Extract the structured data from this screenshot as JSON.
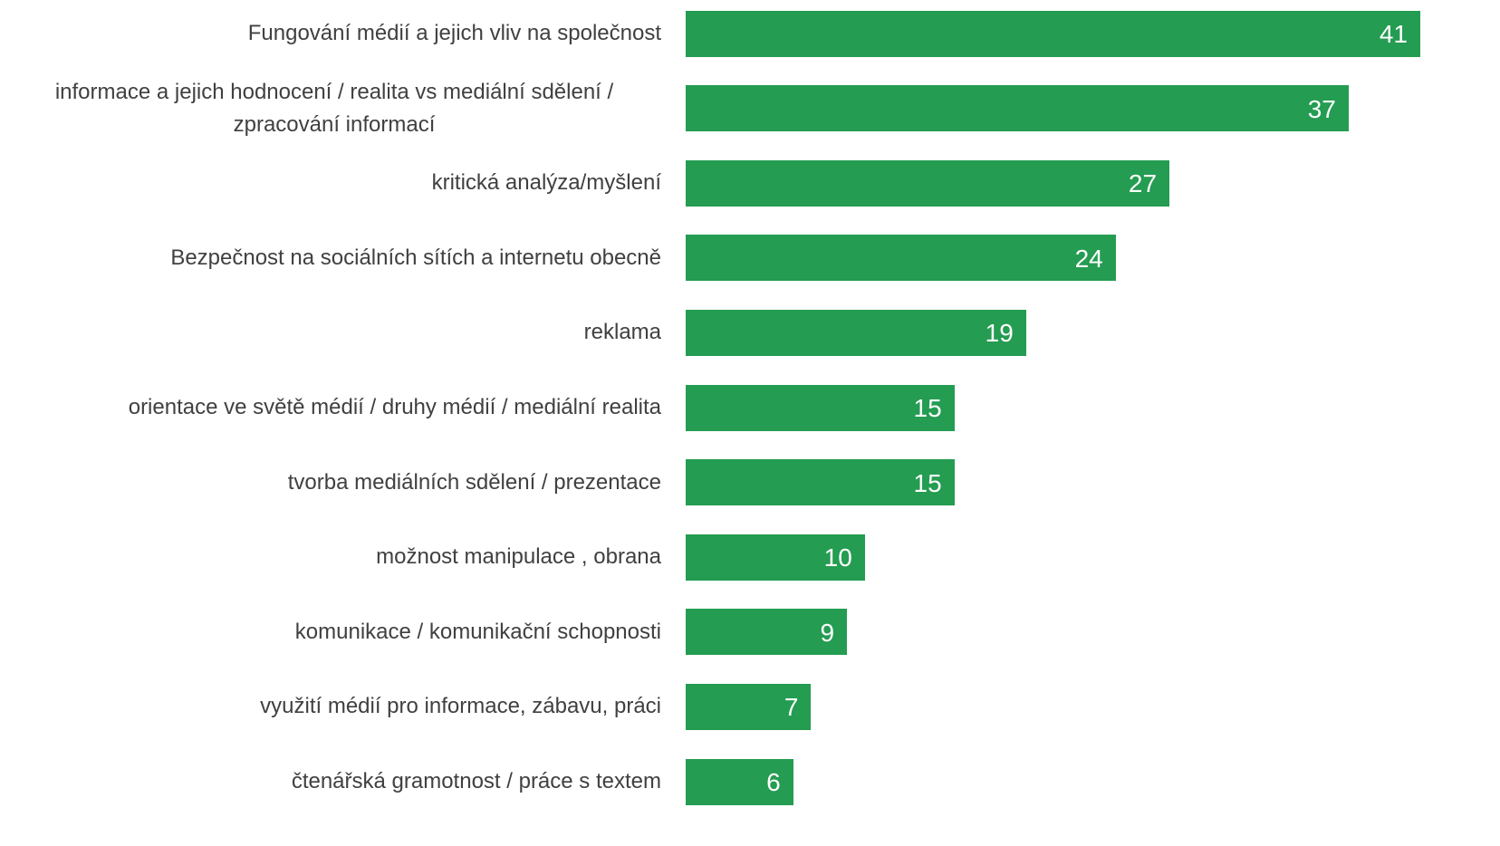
{
  "chart_data": {
    "type": "bar",
    "orientation": "horizontal",
    "color": "#249c51",
    "categories": [
      "Fungování médií a jejich vliv na společnost",
      "informace a jejich hodnocení / realita vs mediální sdělení / zpracování informací",
      "kritická analýza/myšlení",
      "Bezpečnost na sociálních sítích a internetu obecně",
      "reklama",
      "orientace ve světě médií / druhy médií / mediální realita",
      "tvorba mediálních sdělení / prezentace",
      "možnost manipulace , obrana",
      "komunikace / komunikační schopnosti",
      "využití médií pro informace, zábavu, práci",
      "čtenářská gramotnost / práce s textem"
    ],
    "values": [
      41,
      37,
      27,
      24,
      19,
      15,
      15,
      10,
      9,
      7,
      6
    ]
  }
}
